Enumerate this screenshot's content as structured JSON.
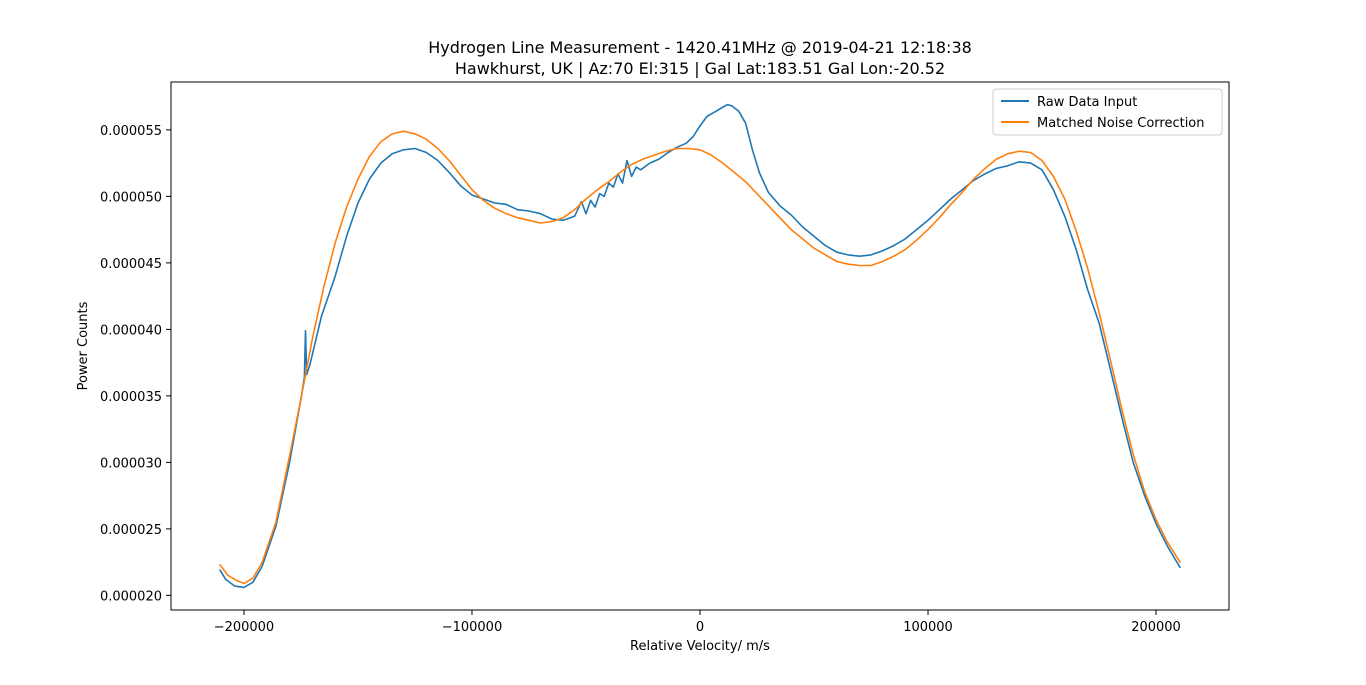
{
  "chart_data": {
    "type": "line",
    "title": [
      "Hydrogen Line Measurement - 1420.41MHz @ 2019-04-21 12:18:38",
      "Hawkhurst, UK | Az:70 El:315 | Gal Lat:183.51 Gal Lon:-20.52"
    ],
    "xlabel": "Relative Velocity/ m/s",
    "ylabel": "Power Counts",
    "xlim": [
      -232000,
      232000
    ],
    "ylim": [
      1.89e-05,
      5.86e-05
    ],
    "xticks": [
      -200000,
      -100000,
      0,
      100000,
      200000
    ],
    "xtick_labels": [
      "−200000",
      "−100000",
      "0",
      "100000",
      "200000"
    ],
    "yticks": [
      2e-05,
      2.5e-05,
      3e-05,
      3.5e-05,
      4e-05,
      4.5e-05,
      5e-05,
      5.5e-05
    ],
    "ytick_labels": [
      "0.000020",
      "0.000025",
      "0.000030",
      "0.000035",
      "0.000040",
      "0.000045",
      "0.000050",
      "0.000055"
    ],
    "grid": false,
    "legend_position": "top-right",
    "series": [
      {
        "name": "Raw Data Input",
        "color": "#1f77b4",
        "x": [
          -210500,
          -208000,
          -204000,
          -200000,
          -196000,
          -192000,
          -186000,
          -180000,
          -175000,
          -173500,
          -173000,
          -172500,
          -171000,
          -166000,
          -160000,
          -155000,
          -150000,
          -145000,
          -140000,
          -135000,
          -130000,
          -125000,
          -120000,
          -115000,
          -110000,
          -105000,
          -100000,
          -95000,
          -90000,
          -85000,
          -80000,
          -75000,
          -70000,
          -65000,
          -60000,
          -55000,
          -52000,
          -50000,
          -48000,
          -46000,
          -44000,
          -42000,
          -40000,
          -38000,
          -36000,
          -34000,
          -32000,
          -30000,
          -28000,
          -26000,
          -22000,
          -18000,
          -14000,
          -10000,
          -6000,
          -3000,
          0,
          3000,
          6000,
          9000,
          12000,
          14000,
          17000,
          20000,
          23000,
          26000,
          30000,
          35000,
          40000,
          45000,
          50000,
          55000,
          60000,
          65000,
          70000,
          75000,
          80000,
          85000,
          90000,
          95000,
          100000,
          105000,
          110000,
          115000,
          120000,
          125000,
          130000,
          135000,
          140000,
          145000,
          150000,
          155000,
          160000,
          165000,
          170000,
          175000,
          180000,
          185000,
          190000,
          195000,
          200000,
          205000,
          210500
        ],
        "y": [
          2.19e-05,
          2.12e-05,
          2.07e-05,
          2.06e-05,
          2.1e-05,
          2.22e-05,
          2.52e-05,
          3e-05,
          3.48e-05,
          3.64e-05,
          3.99e-05,
          3.66e-05,
          3.74e-05,
          4.1e-05,
          4.4e-05,
          4.7e-05,
          4.95e-05,
          5.13e-05,
          5.25e-05,
          5.32e-05,
          5.35e-05,
          5.36e-05,
          5.33e-05,
          5.27e-05,
          5.18e-05,
          5.08e-05,
          5.01e-05,
          4.98e-05,
          4.95e-05,
          4.94e-05,
          4.9e-05,
          4.89e-05,
          4.87e-05,
          4.83e-05,
          4.82e-05,
          4.85e-05,
          4.96e-05,
          4.87e-05,
          4.97e-05,
          4.92e-05,
          5.02e-05,
          5e-05,
          5.1e-05,
          5.07e-05,
          5.17e-05,
          5.1e-05,
          5.27e-05,
          5.15e-05,
          5.22e-05,
          5.2e-05,
          5.25e-05,
          5.28e-05,
          5.33e-05,
          5.37e-05,
          5.4e-05,
          5.45e-05,
          5.53e-05,
          5.6e-05,
          5.63e-05,
          5.66e-05,
          5.69e-05,
          5.68e-05,
          5.64e-05,
          5.55e-05,
          5.35e-05,
          5.18e-05,
          5.03e-05,
          4.93e-05,
          4.86e-05,
          4.77e-05,
          4.7e-05,
          4.63e-05,
          4.58e-05,
          4.56e-05,
          4.55e-05,
          4.56e-05,
          4.59e-05,
          4.63e-05,
          4.68e-05,
          4.75e-05,
          4.82e-05,
          4.9e-05,
          4.98e-05,
          5.05e-05,
          5.12e-05,
          5.17e-05,
          5.21e-05,
          5.23e-05,
          5.26e-05,
          5.25e-05,
          5.2e-05,
          5.05e-05,
          4.85e-05,
          4.6e-05,
          4.3e-05,
          4.05e-05,
          3.7e-05,
          3.34e-05,
          3e-05,
          2.75e-05,
          2.54e-05,
          2.37e-05,
          2.21e-05
        ]
      },
      {
        "name": "Matched Noise Correction",
        "color": "#ff7f0e",
        "x": [
          -210500,
          -207000,
          -203000,
          -200000,
          -196000,
          -192000,
          -186000,
          -180000,
          -175000,
          -170000,
          -165000,
          -160000,
          -155000,
          -150000,
          -145000,
          -140000,
          -135000,
          -130000,
          -125000,
          -120000,
          -115000,
          -110000,
          -105000,
          -100000,
          -95000,
          -90000,
          -85000,
          -80000,
          -75000,
          -70000,
          -65000,
          -60000,
          -55000,
          -50000,
          -45000,
          -40000,
          -35000,
          -30000,
          -25000,
          -20000,
          -15000,
          -10000,
          -5000,
          0,
          5000,
          10000,
          15000,
          20000,
          25000,
          30000,
          35000,
          40000,
          45000,
          50000,
          55000,
          60000,
          65000,
          70000,
          75000,
          80000,
          85000,
          90000,
          95000,
          100000,
          105000,
          110000,
          115000,
          120000,
          125000,
          130000,
          135000,
          140000,
          145000,
          150000,
          155000,
          160000,
          165000,
          170000,
          175000,
          180000,
          185000,
          190000,
          195000,
          200000,
          205000,
          210500
        ],
        "y": [
          2.23e-05,
          2.15e-05,
          2.11e-05,
          2.09e-05,
          2.13e-05,
          2.25e-05,
          2.55e-05,
          3.05e-05,
          3.48e-05,
          3.93e-05,
          4.32e-05,
          4.65e-05,
          4.92e-05,
          5.13e-05,
          5.3e-05,
          5.41e-05,
          5.47e-05,
          5.49e-05,
          5.47e-05,
          5.43e-05,
          5.36e-05,
          5.27e-05,
          5.16e-05,
          5.05e-05,
          4.97e-05,
          4.91e-05,
          4.87e-05,
          4.84e-05,
          4.82e-05,
          4.8e-05,
          4.81e-05,
          4.84e-05,
          4.9e-05,
          4.98e-05,
          5.05e-05,
          5.11e-05,
          5.18e-05,
          5.24e-05,
          5.28e-05,
          5.31e-05,
          5.34e-05,
          5.36e-05,
          5.36e-05,
          5.35e-05,
          5.31e-05,
          5.25e-05,
          5.18e-05,
          5.11e-05,
          5.02e-05,
          4.93e-05,
          4.84e-05,
          4.75e-05,
          4.68e-05,
          4.61e-05,
          4.56e-05,
          4.51e-05,
          4.49e-05,
          4.48e-05,
          4.48e-05,
          4.51e-05,
          4.55e-05,
          4.6e-05,
          4.67e-05,
          4.75e-05,
          4.84e-05,
          4.94e-05,
          5.03e-05,
          5.13e-05,
          5.21e-05,
          5.28e-05,
          5.32e-05,
          5.34e-05,
          5.33e-05,
          5.27e-05,
          5.15e-05,
          4.98e-05,
          4.74e-05,
          4.46e-05,
          4.13e-05,
          3.77e-05,
          3.4e-05,
          3.06e-05,
          2.78e-05,
          2.57e-05,
          2.4e-05,
          2.25e-05
        ]
      }
    ]
  }
}
